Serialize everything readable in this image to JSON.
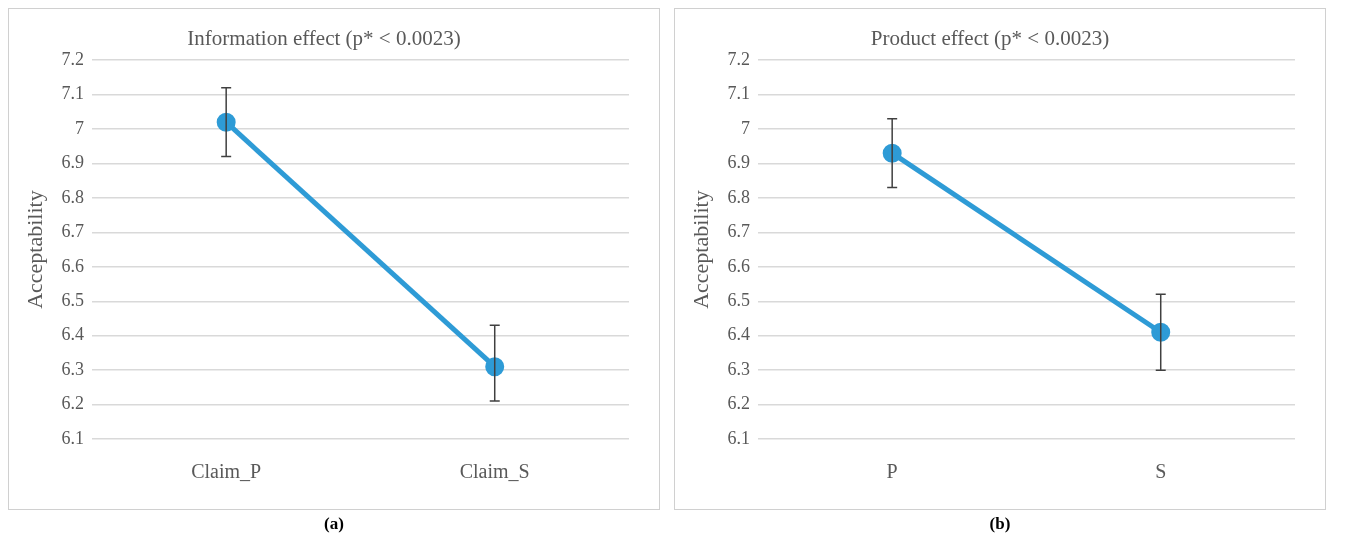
{
  "chart_data": [
    {
      "type": "line",
      "title": "Information effect (p* < 0.0023)",
      "ylabel": "Acceptability",
      "categories": [
        "Claim_P",
        "Claim_S"
      ],
      "series": [
        {
          "color": "#2e9bd6",
          "values": [
            7.02,
            6.31
          ],
          "errors": [
            [
              6.92,
              7.12
            ],
            [
              6.21,
              6.43
            ]
          ]
        }
      ],
      "ylim": [
        6.1,
        7.2
      ],
      "yticks": [
        6.1,
        6.2,
        6.3,
        6.4,
        6.5,
        6.6,
        6.7,
        6.8,
        6.9,
        7,
        7.1,
        7.2
      ],
      "grid": "y",
      "marker": "circle",
      "annotations": [
        "(a)"
      ]
    },
    {
      "type": "line",
      "title": "Product effect (p* < 0.0023)",
      "ylabel": "Acceptability",
      "categories": [
        "P",
        "S"
      ],
      "series": [
        {
          "color": "#2e9bd6",
          "values": [
            6.93,
            6.41
          ],
          "errors": [
            [
              6.83,
              7.03
            ],
            [
              6.3,
              6.52
            ]
          ]
        }
      ],
      "ylim": [
        6.1,
        7.2
      ],
      "yticks": [
        6.1,
        6.2,
        6.3,
        6.4,
        6.5,
        6.6,
        6.7,
        6.8,
        6.9,
        7,
        7.1,
        7.2
      ],
      "grid": "y",
      "marker": "circle",
      "annotations": [
        "(b)"
      ]
    }
  ]
}
